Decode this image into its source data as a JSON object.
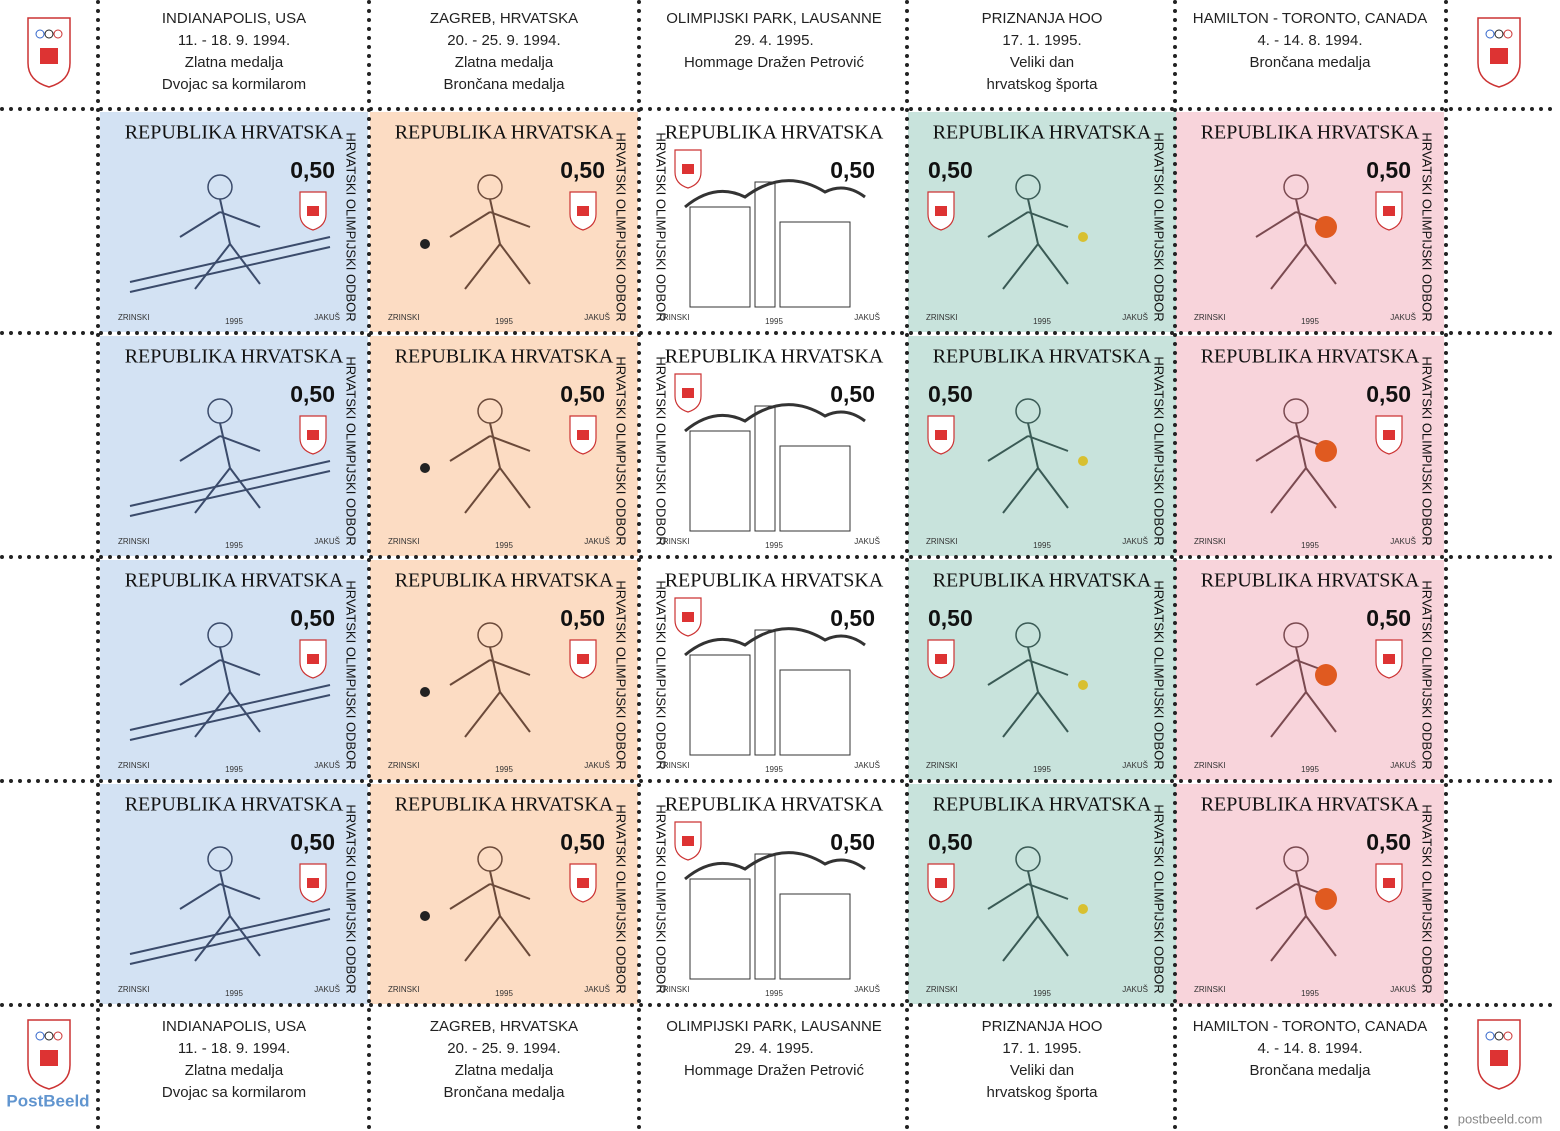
{
  "labels": [
    {
      "lines": [
        "INDIANAPOLIS, USA",
        "11. - 18. 9. 1994.",
        "Zlatna medalja",
        "Dvojac sa kormilarom"
      ]
    },
    {
      "lines": [
        "ZAGREB, HRVATSKA",
        "20. - 25. 9. 1994.",
        "Zlatna medalja",
        "Brončana medalja"
      ]
    },
    {
      "lines": [
        "OLIMPIJSKI PARK, LAUSANNE",
        "29. 4. 1995.",
        "Hommage Dražen Petrović"
      ]
    },
    {
      "lines": [
        "PRIZNANJA HOO",
        "17. 1. 1995.",
        "Veliki dan",
        "hrvatskog športa"
      ]
    },
    {
      "lines": [
        "HAMILTON - TORONTO, CANADA",
        "4. - 14. 8. 1994.",
        "Brončana medalja"
      ]
    }
  ],
  "stamp": {
    "country": "REPUBLIKA HRVATSKA",
    "value": "0,50",
    "side_text": "HRVATSKI OLIMPIJSKI ODBOR",
    "designer": "ZRINSKI",
    "year": "1995",
    "engraver": "JAKUŠ"
  },
  "watermark": {
    "left": "PostBeeld",
    "right": "postbeeld.com"
  }
}
